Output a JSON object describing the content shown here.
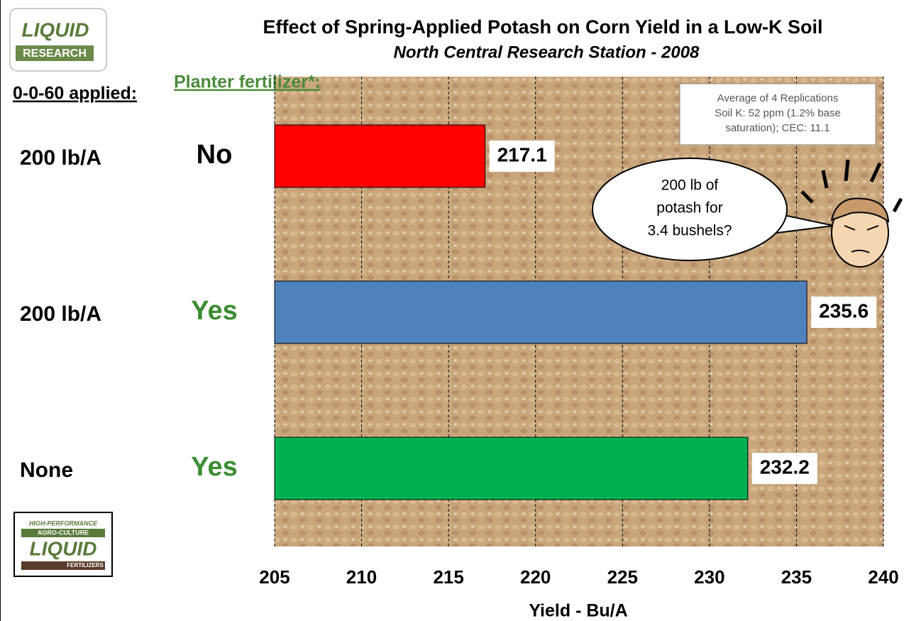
{
  "chart_data": {
    "type": "hbar",
    "title": "Effect of Spring-Applied Potash on Corn Yield in a Low-K Soil",
    "subtitle": "North Central Research Station - 2008",
    "row_headers": [
      "0-0-60 applied:",
      "Planter fertilizer*:"
    ],
    "categories": [
      "200 lb/A",
      "200 lb/A",
      "None"
    ],
    "planter": [
      "No",
      "Yes",
      "Yes"
    ],
    "planter_colors": [
      "#000000",
      "#3c8c32",
      "#3c8c32"
    ],
    "values": [
      217.1,
      235.6,
      232.2
    ],
    "colors": [
      "#ff0000",
      "#4f81bd",
      "#00b050"
    ],
    "xlim": [
      205,
      240
    ],
    "xticks": [
      205,
      210,
      215,
      220,
      225,
      230,
      235,
      240
    ],
    "xlabel": "Yield - Bu/A",
    "grid": true,
    "note": [
      "Average of 4 Replications",
      "Soil K:  52 ppm  (1.2% base",
      "saturation);  CEC: 11.1"
    ],
    "callout": [
      "200 lb of",
      "potash for",
      "3.4 bushels?"
    ]
  },
  "logos": {
    "top": [
      "LIQUID",
      "RESEARCH"
    ],
    "bottom": [
      "HIGH-PERFORMANCE",
      "AGRO-CULTURE",
      "LIQUID",
      "FERTILIZERS"
    ]
  }
}
